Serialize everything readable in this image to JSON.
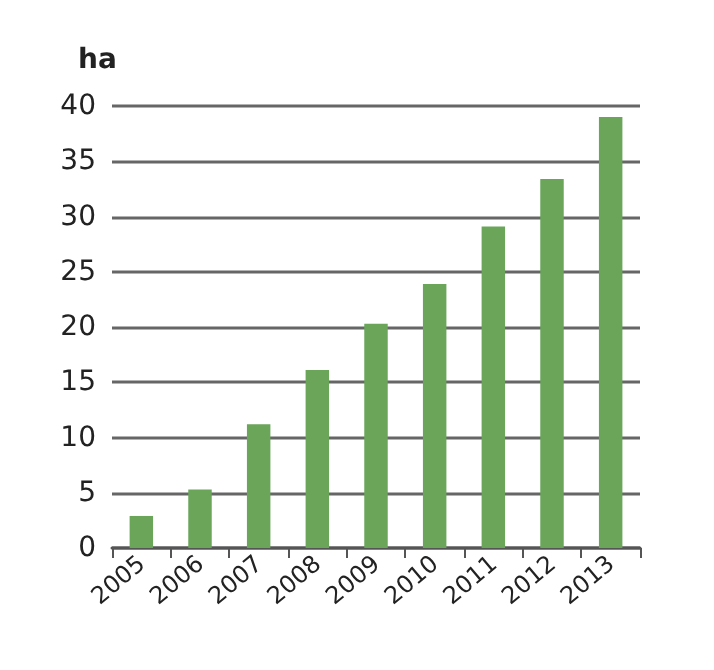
{
  "chart_data": {
    "type": "bar",
    "ylabel": "ha",
    "categories": [
      "2005",
      "2006",
      "2007",
      "2008",
      "2009",
      "2010",
      "2011",
      "2012",
      "2013"
    ],
    "values": [
      2.9,
      5.3,
      11.2,
      16.1,
      20.3,
      23.9,
      29.1,
      33.4,
      39.0
    ],
    "color": "#6aa55a",
    "ylim": [
      0,
      40
    ],
    "yticks": [
      0,
      5,
      10,
      15,
      20,
      25,
      30,
      35,
      40
    ],
    "grid": "y"
  }
}
